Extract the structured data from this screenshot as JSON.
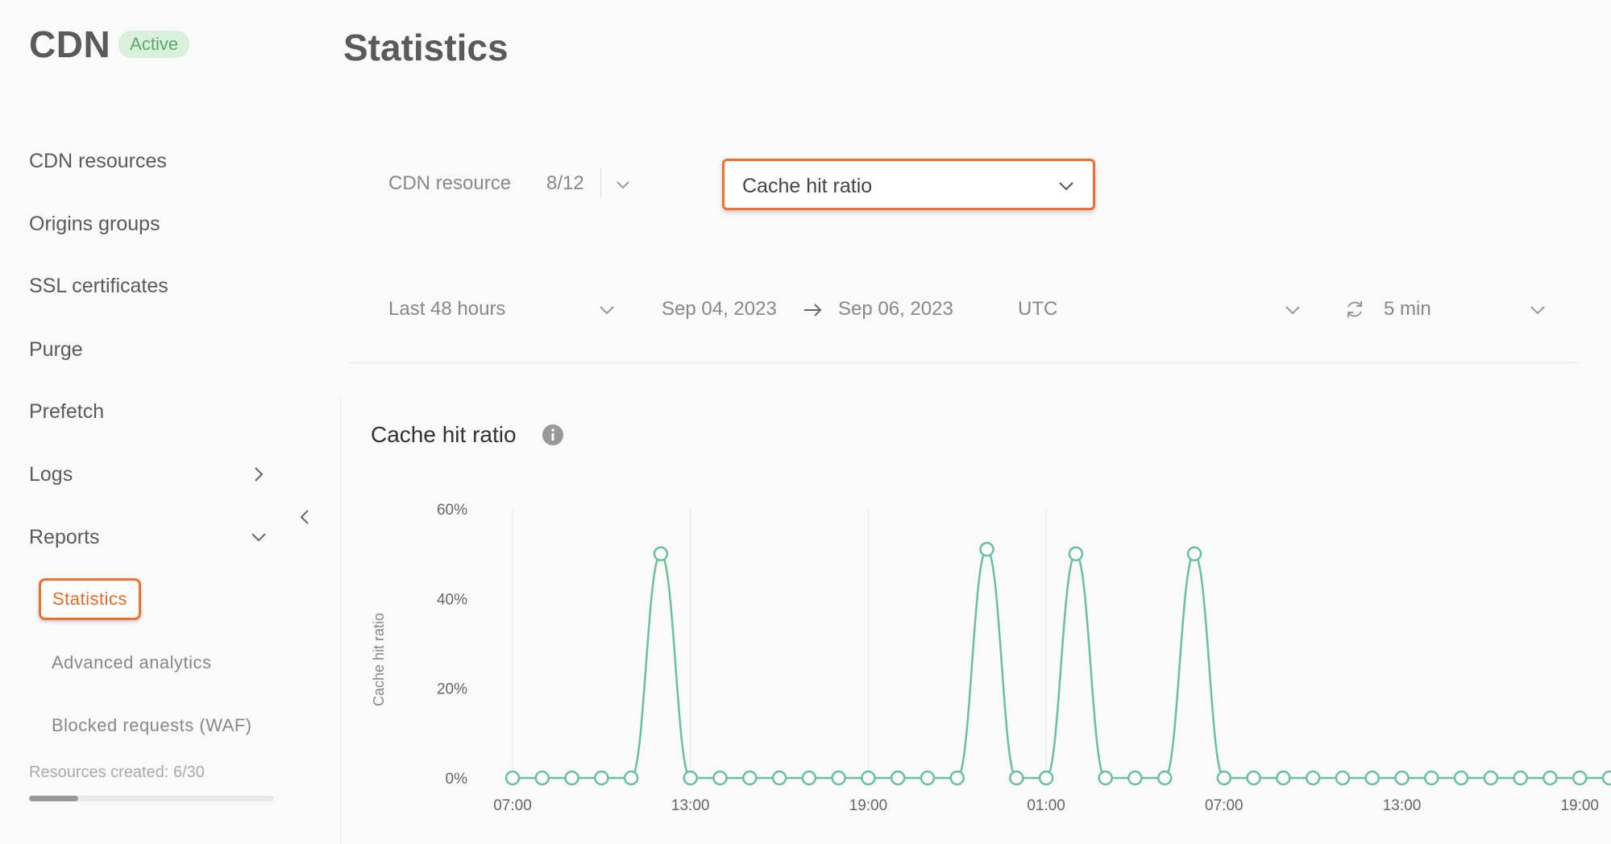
{
  "sidebar": {
    "brand": "CDN",
    "status_badge": "Active",
    "items": [
      {
        "label": "CDN resources"
      },
      {
        "label": "Origins groups"
      },
      {
        "label": "SSL certificates"
      },
      {
        "label": "Purge"
      },
      {
        "label": "Prefetch"
      },
      {
        "label": "Logs"
      },
      {
        "label": "Reports"
      }
    ],
    "sub_items": [
      {
        "label": "Statistics"
      },
      {
        "label": "Advanced analytics"
      },
      {
        "label": "Blocked requests (WAF)"
      }
    ],
    "resources_created": "Resources created: 6/30",
    "resources_progress": 0.2
  },
  "main": {
    "title": "Statistics",
    "filters": {
      "resource_label": "CDN resource",
      "resource_count": "8/12",
      "metric": "Cache hit ratio",
      "period": "Last 48 hours",
      "date_from": "Sep 04, 2023",
      "date_to": "Sep 06, 2023",
      "timezone": "UTC",
      "refresh": "5 min"
    },
    "chart_title": "Cache hit ratio"
  },
  "colors": {
    "accent": "#f07030",
    "line": "#6abf9c",
    "badge_bg": "#d8f0dc",
    "badge_text": "#5aa86a"
  },
  "icons": [
    "chevron-down-icon",
    "chevron-right-icon",
    "chevron-left-icon",
    "arrow-right-icon",
    "refresh-icon",
    "info-icon"
  ],
  "chart_data": {
    "type": "line",
    "title": "Cache hit ratio",
    "ylabel": "Cache hit ratio",
    "xlabel": "",
    "ylim": [
      0,
      60
    ],
    "y_ticks": [
      "0%",
      "20%",
      "40%",
      "60%"
    ],
    "x_ticks": [
      "07:00",
      "13:00",
      "19:00",
      "01:00",
      "07:00",
      "13:00",
      "19:00"
    ],
    "grid": "vertical",
    "series": [
      {
        "values": [
          0,
          0,
          0,
          0,
          0,
          50,
          0,
          0,
          0,
          0,
          0,
          0,
          0,
          0,
          0,
          0,
          51,
          0,
          0,
          50,
          0,
          0,
          0,
          50,
          0,
          0,
          0,
          0,
          0,
          0,
          0,
          0,
          0,
          0,
          0,
          0,
          0,
          0
        ]
      }
    ]
  }
}
